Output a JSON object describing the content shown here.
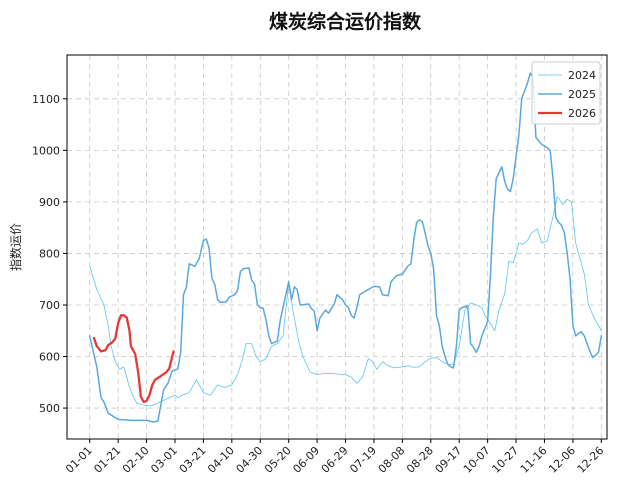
{
  "chart_data": {
    "type": "line",
    "title": "煤炭综合运价指数",
    "xlabel": "",
    "ylabel": "指数运价",
    "x_tick_labels": [
      "01-01",
      "01-21",
      "02-10",
      "03-01",
      "03-21",
      "04-10",
      "04-30",
      "05-20",
      "06-09",
      "06-29",
      "07-19",
      "08-08",
      "08-28",
      "09-17",
      "10-07",
      "10-27",
      "11-16",
      "12-06",
      "12-26"
    ],
    "x_tick_days": [
      0,
      20,
      40,
      60,
      80,
      100,
      120,
      140,
      160,
      180,
      200,
      220,
      240,
      260,
      280,
      300,
      320,
      340,
      360
    ],
    "y_ticks": [
      500,
      600,
      700,
      800,
      900,
      1000,
      1100
    ],
    "ylim": [
      440,
      1185
    ],
    "xlim": [
      -16,
      364
    ],
    "grid": true,
    "legend_position": "top-right",
    "series": [
      {
        "name": "2024",
        "color": "#5bc8e6",
        "width": 0.8,
        "points": [
          [
            0,
            775
          ],
          [
            5,
            730
          ],
          [
            10,
            700
          ],
          [
            13,
            660
          ],
          [
            15,
            620
          ],
          [
            18,
            590
          ],
          [
            21,
            575
          ],
          [
            24,
            580
          ],
          [
            26,
            560
          ],
          [
            28,
            540
          ],
          [
            31,
            520
          ],
          [
            33,
            510
          ],
          [
            36,
            507
          ],
          [
            40,
            505
          ],
          [
            44,
            505
          ],
          [
            48,
            510
          ],
          [
            52,
            515
          ],
          [
            56,
            520
          ],
          [
            60,
            525
          ],
          [
            62,
            520
          ],
          [
            65,
            525
          ],
          [
            70,
            530
          ],
          [
            75,
            555
          ],
          [
            80,
            530
          ],
          [
            85,
            525
          ],
          [
            90,
            545
          ],
          [
            95,
            540
          ],
          [
            100,
            545
          ],
          [
            104,
            565
          ],
          [
            107,
            590
          ],
          [
            110,
            625
          ],
          [
            114,
            625
          ],
          [
            117,
            600
          ],
          [
            120,
            590
          ],
          [
            124,
            596
          ],
          [
            128,
            620
          ],
          [
            132,
            625
          ],
          [
            136,
            640
          ],
          [
            140,
            742
          ],
          [
            143,
            690
          ],
          [
            147,
            630
          ],
          [
            150,
            600
          ],
          [
            155,
            570
          ],
          [
            160,
            565
          ],
          [
            165,
            567
          ],
          [
            170,
            567
          ],
          [
            175,
            566
          ],
          [
            180,
            565
          ],
          [
            184,
            560
          ],
          [
            188,
            548
          ],
          [
            192,
            560
          ],
          [
            196,
            596
          ],
          [
            199,
            590
          ],
          [
            202,
            575
          ],
          [
            206,
            590
          ],
          [
            210,
            582
          ],
          [
            214,
            578
          ],
          [
            220,
            580
          ],
          [
            224,
            582
          ],
          [
            228,
            579
          ],
          [
            232,
            580
          ],
          [
            236,
            590
          ],
          [
            240,
            597
          ],
          [
            244,
            598
          ],
          [
            248,
            590
          ],
          [
            252,
            585
          ],
          [
            256,
            585
          ],
          [
            260,
            620
          ],
          [
            264,
            690
          ],
          [
            268,
            704
          ],
          [
            272,
            700
          ],
          [
            276,
            695
          ],
          [
            278,
            680
          ],
          [
            282,
            664
          ],
          [
            285,
            650
          ],
          [
            288,
            690
          ],
          [
            292,
            722
          ],
          [
            295,
            785
          ],
          [
            298,
            782
          ],
          [
            302,
            820
          ],
          [
            305,
            818
          ],
          [
            308,
            825
          ],
          [
            311,
            840
          ],
          [
            315,
            848
          ],
          [
            318,
            820
          ],
          [
            322,
            825
          ],
          [
            326,
            872
          ],
          [
            329,
            910
          ],
          [
            333,
            895
          ],
          [
            336,
            905
          ],
          [
            339,
            900
          ],
          [
            342,
            820
          ],
          [
            345,
            790
          ],
          [
            348,
            760
          ],
          [
            351,
            700
          ],
          [
            355,
            675
          ],
          [
            358,
            660
          ],
          [
            360,
            650
          ]
        ]
      },
      {
        "name": "2025",
        "color": "#5ba8de",
        "width": 1.5,
        "points": [
          [
            0,
            640
          ],
          [
            5,
            580
          ],
          [
            8,
            520
          ],
          [
            10,
            512
          ],
          [
            13,
            490
          ],
          [
            16,
            485
          ],
          [
            20,
            478
          ],
          [
            30,
            476
          ],
          [
            40,
            476
          ],
          [
            45,
            473
          ],
          [
            48,
            475
          ],
          [
            52,
            535
          ],
          [
            55,
            548
          ],
          [
            58,
            572
          ],
          [
            62,
            576
          ],
          [
            64,
            608
          ],
          [
            66,
            720
          ],
          [
            68,
            735
          ],
          [
            70,
            780
          ],
          [
            74,
            775
          ],
          [
            77,
            790
          ],
          [
            80,
            825
          ],
          [
            82,
            828
          ],
          [
            84,
            810
          ],
          [
            86,
            752
          ],
          [
            88,
            740
          ],
          [
            90,
            710
          ],
          [
            92,
            705
          ],
          [
            96,
            706
          ],
          [
            98,
            715
          ],
          [
            102,
            720
          ],
          [
            104,
            728
          ],
          [
            106,
            765
          ],
          [
            108,
            770
          ],
          [
            112,
            772
          ],
          [
            114,
            748
          ],
          [
            116,
            740
          ],
          [
            118,
            700
          ],
          [
            120,
            695
          ],
          [
            122,
            694
          ],
          [
            124,
            672
          ],
          [
            126,
            640
          ],
          [
            128,
            625
          ],
          [
            132,
            630
          ],
          [
            134,
            670
          ],
          [
            138,
            720
          ],
          [
            140,
            745
          ],
          [
            142,
            710
          ],
          [
            144,
            735
          ],
          [
            146,
            730
          ],
          [
            148,
            700
          ],
          [
            154,
            702
          ],
          [
            156,
            693
          ],
          [
            158,
            688
          ],
          [
            160,
            650
          ],
          [
            162,
            675
          ],
          [
            166,
            690
          ],
          [
            168,
            684
          ],
          [
            172,
            702
          ],
          [
            174,
            720
          ],
          [
            178,
            710
          ],
          [
            180,
            700
          ],
          [
            182,
            695
          ],
          [
            184,
            680
          ],
          [
            186,
            675
          ],
          [
            188,
            695
          ],
          [
            190,
            720
          ],
          [
            196,
            730
          ],
          [
            200,
            736
          ],
          [
            204,
            735
          ],
          [
            206,
            720
          ],
          [
            210,
            718
          ],
          [
            212,
            745
          ],
          [
            216,
            757
          ],
          [
            220,
            760
          ],
          [
            224,
            776
          ],
          [
            226,
            780
          ],
          [
            228,
            825
          ],
          [
            230,
            860
          ],
          [
            232,
            865
          ],
          [
            234,
            862
          ],
          [
            236,
            840
          ],
          [
            238,
            815
          ],
          [
            240,
            800
          ],
          [
            242,
            770
          ],
          [
            244,
            680
          ],
          [
            246,
            660
          ],
          [
            248,
            620
          ],
          [
            250,
            600
          ],
          [
            252,
            585
          ],
          [
            254,
            580
          ],
          [
            256,
            578
          ],
          [
            258,
            620
          ],
          [
            260,
            690
          ],
          [
            262,
            695
          ],
          [
            266,
            698
          ],
          [
            268,
            625
          ],
          [
            270,
            618
          ],
          [
            272,
            608
          ],
          [
            274,
            620
          ],
          [
            276,
            640
          ],
          [
            280,
            668
          ],
          [
            282,
            760
          ],
          [
            284,
            870
          ],
          [
            286,
            945
          ],
          [
            290,
            968
          ],
          [
            292,
            940
          ],
          [
            294,
            925
          ],
          [
            296,
            920
          ],
          [
            298,
            945
          ],
          [
            302,
            1030
          ],
          [
            304,
            1100
          ],
          [
            308,
            1130
          ],
          [
            310,
            1150
          ],
          [
            312,
            1140
          ],
          [
            314,
            1025
          ],
          [
            318,
            1012
          ],
          [
            322,
            1005
          ],
          [
            324,
            1000
          ],
          [
            326,
            945
          ],
          [
            328,
            870
          ],
          [
            330,
            860
          ],
          [
            332,
            855
          ],
          [
            334,
            840
          ],
          [
            336,
            800
          ],
          [
            338,
            750
          ],
          [
            340,
            660
          ],
          [
            342,
            640
          ],
          [
            344,
            645
          ],
          [
            346,
            648
          ],
          [
            348,
            640
          ],
          [
            352,
            610
          ],
          [
            354,
            598
          ],
          [
            358,
            608
          ],
          [
            360,
            640
          ]
        ]
      },
      {
        "name": "2026",
        "color": "#e53935",
        "width": 2.3,
        "points": [
          [
            3,
            636
          ],
          [
            5,
            620
          ],
          [
            8,
            610
          ],
          [
            11,
            612
          ],
          [
            13,
            622
          ],
          [
            16,
            628
          ],
          [
            18,
            635
          ],
          [
            20,
            665
          ],
          [
            22,
            680
          ],
          [
            24,
            680
          ],
          [
            26,
            676
          ],
          [
            28,
            650
          ],
          [
            29,
            620
          ],
          [
            32,
            605
          ],
          [
            34,
            570
          ],
          [
            36,
            522
          ],
          [
            38,
            512
          ],
          [
            40,
            514
          ],
          [
            42,
            525
          ],
          [
            44,
            545
          ],
          [
            46,
            555
          ],
          [
            50,
            562
          ],
          [
            54,
            570
          ],
          [
            56,
            577
          ],
          [
            58,
            600
          ],
          [
            59,
            610
          ]
        ]
      }
    ]
  }
}
